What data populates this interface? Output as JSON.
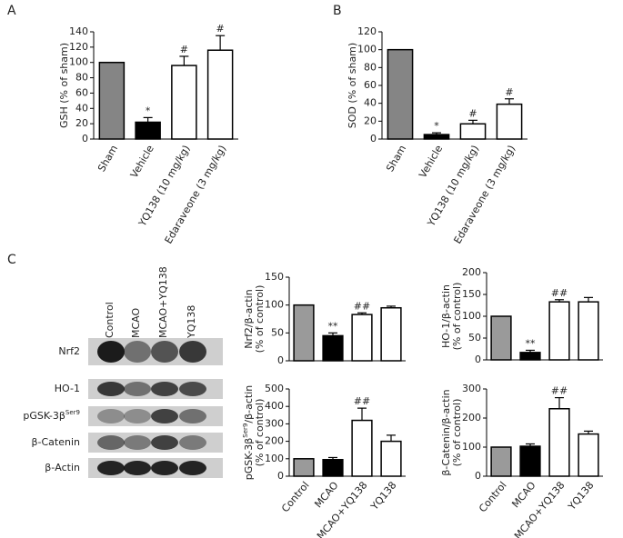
{
  "panels": [
    "A",
    "B",
    "C"
  ],
  "blot": {
    "lanes": [
      "Control",
      "MCAO",
      "MCAO+YQ138",
      "YQ138"
    ],
    "proteins": [
      "Nrf2",
      "HO-1",
      [
        "pGSK-3β",
        "Ser9"
      ],
      "β-Catenin",
      "β-Actin"
    ]
  },
  "chart_data": [
    {
      "type": "bar",
      "ylabel": [
        "GSH (% of sham)"
      ],
      "categories": [
        "Sham",
        "Vehicle",
        "YQ138 (10 mg/kg)",
        "Edaraveone (3 mg/kg)"
      ],
      "values": [
        100,
        22,
        96,
        116
      ],
      "errors": [
        0,
        6,
        12,
        19
      ],
      "annotations": [
        null,
        "*",
        "#",
        "#"
      ],
      "colors": [
        "#858585",
        "#000000",
        "#ffffff",
        "#ffffff"
      ],
      "ylim": [
        0,
        140
      ],
      "yticks": [
        0,
        20,
        40,
        60,
        80,
        100,
        120,
        140
      ]
    },
    {
      "type": "bar",
      "ylabel": [
        "SOD (% of sham)"
      ],
      "categories": [
        "Sham",
        "Vehicle",
        "YQ138 (10 mg/kg)",
        "Edaraveone (3 mg/kg)"
      ],
      "values": [
        100,
        5,
        17,
        39
      ],
      "errors": [
        0,
        2,
        4,
        6
      ],
      "annotations": [
        null,
        "*",
        "#",
        "#"
      ],
      "colors": [
        "#858585",
        "#000000",
        "#ffffff",
        "#ffffff"
      ],
      "ylim": [
        0,
        120
      ],
      "yticks": [
        0,
        20,
        40,
        60,
        80,
        100,
        120
      ]
    },
    {
      "type": "bar",
      "ylabel": [
        "Nrf2/β-actin",
        "(% of control)"
      ],
      "values": [
        100,
        45,
        83,
        95
      ],
      "errors": [
        0,
        5,
        3,
        3
      ],
      "annotations": [
        null,
        "**",
        "##",
        null
      ],
      "colors": [
        "#9a9a9a",
        "#000000",
        "#ffffff",
        "#ffffff"
      ],
      "ylim": [
        0,
        150
      ],
      "yticks": [
        0,
        50,
        100,
        150
      ]
    },
    {
      "type": "bar",
      "ylabel": [
        "HO-1/β-actin",
        "(% of control)"
      ],
      "values": [
        100,
        17,
        133,
        133
      ],
      "errors": [
        0,
        5,
        5,
        10
      ],
      "annotations": [
        null,
        "**",
        "##",
        null
      ],
      "colors": [
        "#9a9a9a",
        "#000000",
        "#ffffff",
        "#ffffff"
      ],
      "ylim": [
        0,
        200
      ],
      "yticks": [
        0,
        50,
        100,
        150,
        200
      ]
    },
    {
      "type": "bar",
      "ylabel": [
        [
          "pGSK-3β",
          "Ser9",
          "/β-actin"
        ],
        "(% of control)"
      ],
      "categories": [
        "Control",
        "MCAO",
        "MCAO+YQ138",
        "YQ138"
      ],
      "values": [
        100,
        95,
        320,
        200
      ],
      "errors": [
        0,
        12,
        70,
        35
      ],
      "annotations": [
        null,
        null,
        "##",
        null
      ],
      "colors": [
        "#9a9a9a",
        "#000000",
        "#ffffff",
        "#ffffff"
      ],
      "ylim": [
        0,
        500
      ],
      "yticks": [
        0,
        100,
        200,
        300,
        400,
        500
      ]
    },
    {
      "type": "bar",
      "ylabel": [
        "β-Catenin/β-actin",
        "(% of control)"
      ],
      "categories": [
        "Control",
        "MCAO",
        "MCAO+YQ138",
        "YQ138"
      ],
      "values": [
        100,
        103,
        232,
        145
      ],
      "errors": [
        0,
        8,
        38,
        10
      ],
      "annotations": [
        null,
        null,
        "##",
        null
      ],
      "colors": [
        "#9a9a9a",
        "#000000",
        "#ffffff",
        "#ffffff"
      ],
      "ylim": [
        0,
        300
      ],
      "yticks": [
        0,
        100,
        200,
        300
      ]
    }
  ]
}
